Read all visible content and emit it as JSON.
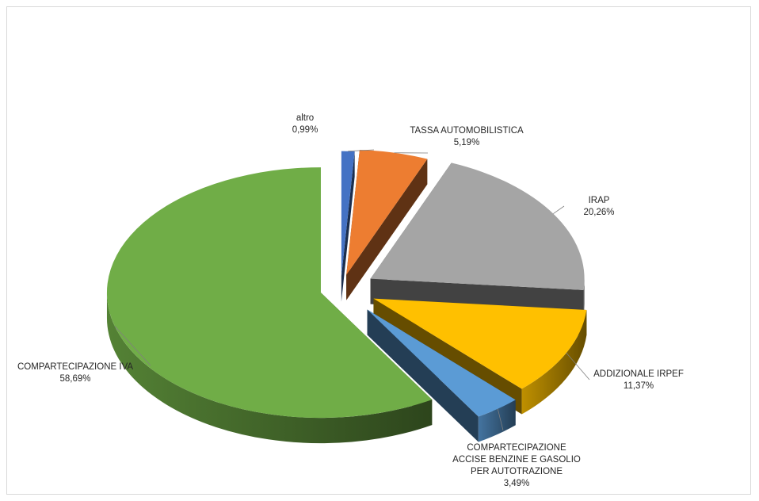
{
  "chart_data": {
    "type": "pie",
    "style": "3d-exploded",
    "legend": "none",
    "categories": [
      "altro",
      "TASSA AUTOMOBILISTICA",
      "IRAP",
      "ADDIZIONALE  IRPEF",
      "COMPARTECIPAZIONE ACCISE BENZINE E GASOLIO PER AUTOTRAZIONE",
      "COMPARTECIPAZIONE IVA"
    ],
    "values": [
      0.99,
      5.19,
      20.26,
      11.37,
      3.49,
      58.69
    ],
    "slices": [
      {
        "name": "altro",
        "value": 0.99,
        "color": "#4472c4",
        "label_lines": [
          "altro"
        ],
        "value_label": "0,99%"
      },
      {
        "name": "TASSA AUTOMOBILISTICA",
        "value": 5.19,
        "color": "#ed7d31",
        "label_lines": [
          "TASSA AUTOMOBILISTICA"
        ],
        "value_label": "5,19%"
      },
      {
        "name": "IRAP",
        "value": 20.26,
        "color": "#a5a5a5",
        "label_lines": [
          "IRAP"
        ],
        "value_label": "20,26%"
      },
      {
        "name": "ADDIZIONALE  IRPEF",
        "value": 11.37,
        "color": "#ffc000",
        "label_lines": [
          "ADDIZIONALE  IRPEF"
        ],
        "value_label": "11,37%"
      },
      {
        "name": "COMPARTECIPAZIONE ACCISE BENZINE E GASOLIO PER AUTOTRAZIONE",
        "value": 3.49,
        "color": "#5b9bd5",
        "label_lines": [
          "COMPARTECIPAZIONE",
          "ACCISE BENZINE E GASOLIO",
          "PER AUTOTRAZIONE"
        ],
        "value_label": "3,49%"
      },
      {
        "name": "COMPARTECIPAZIONE IVA",
        "value": 58.69,
        "color": "#70ad47",
        "label_lines": [
          "COMPARTECIPAZIONE IVA"
        ],
        "value_label": "58,69%"
      }
    ]
  }
}
